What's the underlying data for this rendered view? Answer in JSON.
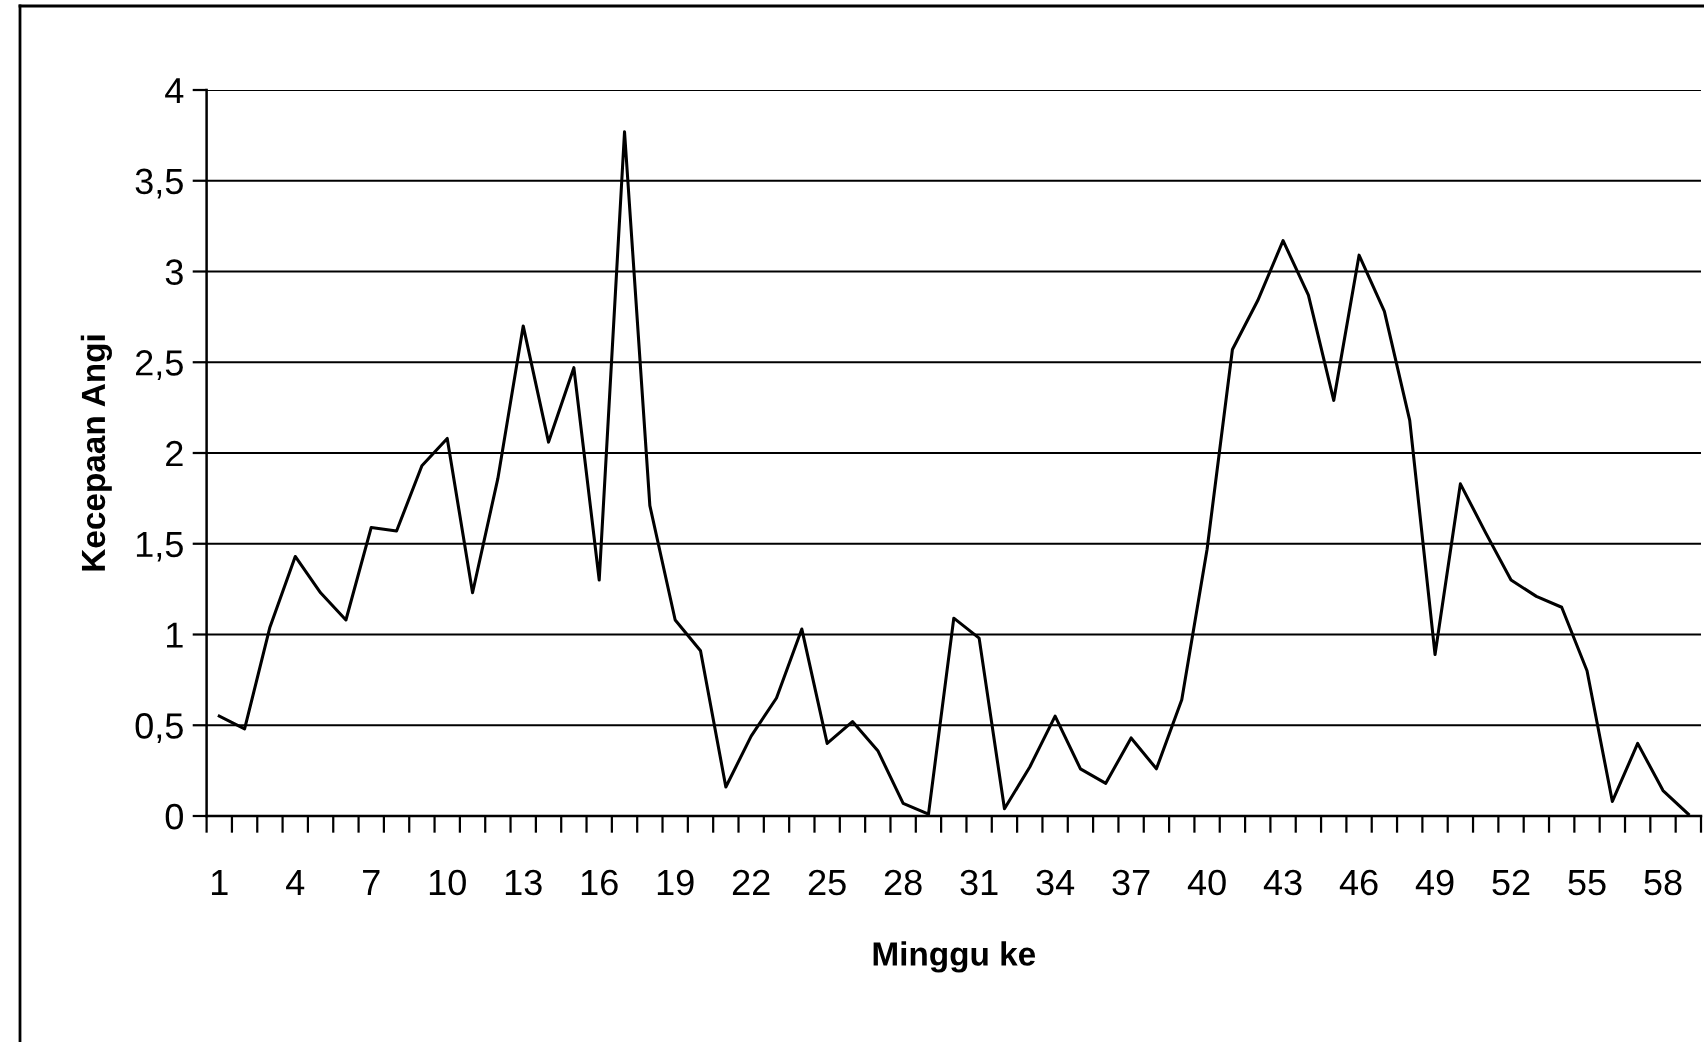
{
  "chart_data": {
    "type": "line",
    "xlabel": "Minggu ke",
    "ylabel": "Kecepaan Angi",
    "categories": [
      "1",
      null,
      null,
      "4",
      null,
      null,
      "7",
      null,
      null,
      "10",
      null,
      null,
      "13",
      null,
      null,
      "16",
      null,
      null,
      "19",
      null,
      null,
      "22",
      null,
      null,
      "25",
      null,
      null,
      "28",
      null,
      null,
      "31",
      null,
      null,
      "34",
      null,
      null,
      "37",
      null,
      null,
      "40",
      null,
      null,
      "43",
      null,
      null,
      "46",
      null,
      null,
      "49",
      null,
      null,
      "52",
      null,
      null,
      "55",
      null,
      null,
      "58",
      null
    ],
    "series": [
      {
        "color": "#000000",
        "values": [
          0.55,
          0.48,
          1.04,
          1.43,
          1.23,
          1.08,
          1.59,
          1.57,
          1.93,
          2.08,
          1.23,
          1.86,
          2.7,
          2.06,
          2.47,
          1.3,
          3.77,
          1.71,
          1.08,
          0.91,
          0.16,
          0.44,
          0.65,
          1.03,
          0.4,
          0.52,
          0.36,
          0.07,
          0.01,
          1.09,
          0.98,
          0.04,
          0.27,
          0.55,
          0.26,
          0.18,
          0.43,
          0.26,
          0.64,
          1.47,
          2.57,
          2.84,
          3.17,
          2.87,
          2.29,
          3.09,
          2.78,
          2.18,
          0.89,
          1.83,
          1.56,
          1.3,
          1.21,
          1.15,
          0.8,
          0.08,
          0.4,
          0.14,
          0.01
        ]
      }
    ],
    "ylim": [
      0,
      4
    ],
    "yticks": [
      0,
      {
        "value": 0.5,
        "label": "0,5"
      },
      1,
      {
        "value": 1.5,
        "label": "1,5"
      },
      2,
      {
        "value": 2.5,
        "label": "2,5"
      },
      3,
      {
        "value": 3.5,
        "label": "3,5"
      },
      4
    ],
    "grid": "y",
    "line_style": "solid"
  }
}
